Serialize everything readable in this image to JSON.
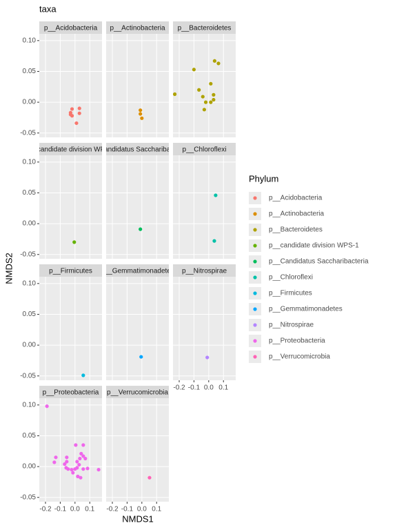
{
  "chart_data": {
    "type": "scatter",
    "title": "taxa",
    "xlabel": "NMDS1",
    "ylabel": "NMDS2",
    "legend_title": "Phylum",
    "legend": "right",
    "grid": true,
    "xlim": [
      -0.242,
      0.183
    ],
    "xticks": [
      -0.2,
      -0.1,
      {
        "value": 0,
        "label": "0.0"
      },
      0.1
    ],
    "ylim": [
      -0.057,
      0.111
    ],
    "yticks": [
      -0.05,
      {
        "value": 0,
        "label": "0.00"
      },
      0.05,
      {
        "value": 0.1,
        "label": "0.10"
      }
    ],
    "series": [
      {
        "name": "p__Acidobacteria",
        "color": "#F8766D",
        "x": [
          -0.02,
          -0.03,
          0.03,
          0.03,
          -0.03,
          -0.02,
          0.01
        ],
        "y": [
          -0.011,
          -0.017,
          -0.01,
          -0.018,
          -0.02,
          -0.022,
          -0.034
        ]
      },
      {
        "name": "p__Actinobacteria",
        "color": "#DB8E00",
        "x": [
          -0.01,
          -0.01,
          0.0
        ],
        "y": [
          -0.013,
          -0.019,
          -0.026
        ]
      },
      {
        "name": "p__Bacteroidetes",
        "color": "#AEA200",
        "x": [
          0.04,
          0.066,
          -0.1,
          -0.23,
          -0.066,
          -0.04,
          0.033,
          0.033,
          -0.02,
          0.014,
          -0.03,
          0.014
        ],
        "y": [
          0.067,
          0.063,
          0.053,
          0.013,
          0.02,
          0.009,
          0.012,
          0.004,
          0.0,
          0.0,
          -0.012,
          0.03
        ]
      },
      {
        "name": "p__candidate division WPS-1",
        "color": "#64B200",
        "x": [
          -0.005
        ],
        "y": [
          -0.03
        ]
      },
      {
        "name": "p__Candidatus Saccharibacteria",
        "color": "#00BD5C",
        "x": [
          -0.01
        ],
        "y": [
          -0.009
        ]
      },
      {
        "name": "p__Chloroflexi",
        "color": "#00C1A7",
        "x": [
          0.047,
          0.038
        ],
        "y": [
          0.046,
          -0.028
        ]
      },
      {
        "name": "p__Firmicutes",
        "color": "#00BADE",
        "x": [
          0.056
        ],
        "y": [
          -0.049
        ]
      },
      {
        "name": "p__Gemmatimonadetes",
        "color": "#00A6FF",
        "x": [
          -0.005
        ],
        "y": [
          -0.019
        ]
      },
      {
        "name": "p__Nitrospirae",
        "color": "#B385FF",
        "x": [
          -0.01
        ],
        "y": [
          -0.02
        ]
      },
      {
        "name": "p__Proteobacteria",
        "color": "#EF67EB",
        "x": [
          -0.19,
          -0.13,
          -0.14,
          -0.056,
          -0.056,
          -0.07,
          -0.06,
          -0.047,
          0.005,
          0.056,
          0.042,
          0.056,
          0.033,
          0.07,
          0.014,
          0.028,
          0.014,
          0.0,
          -0.014,
          0.019,
          0.038,
          -0.023,
          0.085,
          0.16,
          0.056
        ],
        "y": [
          0.098,
          0.015,
          0.007,
          0.015,
          0.008,
          0.004,
          -0.002,
          -0.004,
          0.035,
          0.035,
          0.021,
          0.017,
          0.013,
          0.013,
          0.008,
          0.003,
          -0.002,
          -0.004,
          -0.01,
          -0.016,
          -0.018,
          -0.005,
          -0.003,
          -0.005,
          -0.004
        ]
      },
      {
        "name": "p__Verrucomicrobia",
        "color": "#FF63B6",
        "x": [
          0.052
        ],
        "y": [
          -0.018
        ]
      }
    ]
  }
}
